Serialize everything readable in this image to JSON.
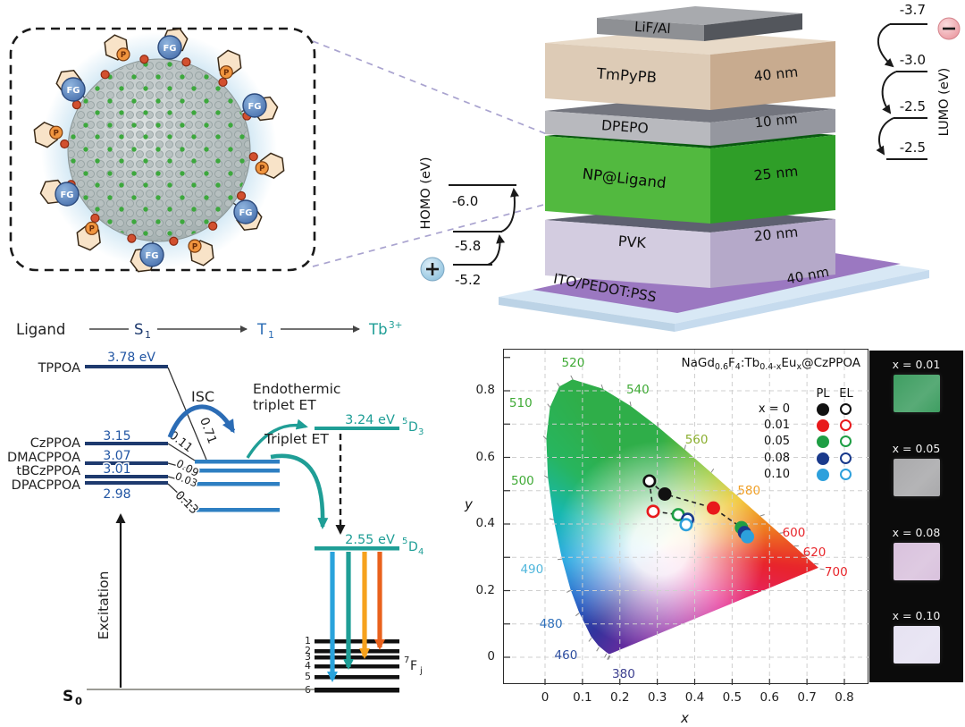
{
  "inset": {
    "fg_label": "FG",
    "p_label": "P"
  },
  "device": {
    "layers": [
      {
        "name": "LiF/Al",
        "thickness": ""
      },
      {
        "name": "TmPyPB",
        "thickness": "40 nm"
      },
      {
        "name": "DPEPO",
        "thickness": "10 nm"
      },
      {
        "name": "NP@Ligand",
        "thickness": "25 nm"
      },
      {
        "name": "PVK",
        "thickness": "20 nm"
      },
      {
        "name": "ITO/PEDOT:PSS",
        "thickness": "40 nm"
      }
    ],
    "homo": {
      "label": "HOMO (eV)",
      "values": [
        "-6.0",
        "-5.8",
        "-5.2"
      ]
    },
    "lumo": {
      "label": "LUMO (eV)",
      "values": [
        "-3.7",
        "-3.0",
        "-2.5",
        "-2.5"
      ]
    }
  },
  "energy": {
    "header": {
      "ligand": "Ligand",
      "s1_base": "S",
      "s1_sub": "1",
      "t1_base": "T",
      "t1_sub": "1",
      "tb_base": "Tb",
      "tb_sup": "3+"
    },
    "ligands": [
      {
        "name": "TPPOA",
        "value": "3.78 eV",
        "delta": "0.71"
      },
      {
        "name": "CzPPOA",
        "value": "3.15",
        "delta": "0.11"
      },
      {
        "name": "DMACPPOA",
        "value": "3.07",
        "delta": "0.09"
      },
      {
        "name": "tBCzPPOA",
        "value": "3.01",
        "delta": "0.03"
      },
      {
        "name": "DPACPPOA",
        "value": "2.98",
        "delta": "0.13"
      }
    ],
    "labels": {
      "isc": "ISC",
      "endo1": "Endothermic",
      "endo2": "triplet ET",
      "triplet": "Triplet ET",
      "excitation": "Excitation",
      "s0_base": "S",
      "s0_sub": "0"
    },
    "d3": {
      "energy": "3.24 eV",
      "sup": "5",
      "base": "D",
      "sub": "3"
    },
    "d4": {
      "energy": "2.55 eV",
      "sup": "5",
      "base": "D",
      "sub": "4"
    },
    "fj": {
      "sup": "7",
      "base": "F",
      "sub": "j"
    },
    "fj_levels": [
      "1",
      "2",
      "3",
      "4",
      "5",
      "6"
    ]
  },
  "chart_data": {
    "type": "scatter",
    "title_parts": [
      {
        "t": "NaGd"
      },
      {
        "t": "0.6",
        "sub": true
      },
      {
        "t": "F"
      },
      {
        "t": "4",
        "sub": true
      },
      {
        "t": ":Tb"
      },
      {
        "t": "0.4-x",
        "sub": true
      },
      {
        "t": "Eu"
      },
      {
        "t": "x",
        "sub": true
      },
      {
        "t": "@CzPPOA"
      }
    ],
    "xlabel": "x",
    "ylabel": "y",
    "xlim": [
      0,
      0.8
    ],
    "ylim": [
      0,
      0.9
    ],
    "x_ticks": [
      "0",
      "0.1",
      "0.2",
      "0.3",
      "0.4",
      "0.5",
      "0.6",
      "0.7",
      "0.8"
    ],
    "y_ticks": [
      "0",
      "0.2",
      "0.4",
      "0.6",
      "0.8"
    ],
    "grid": "dashed",
    "legend": {
      "header_pl": "PL",
      "header_el": "EL",
      "x_label": "x =",
      "rows": [
        {
          "value": "0",
          "color": "#111111"
        },
        {
          "value": "0.01",
          "color": "#e8191c"
        },
        {
          "value": "0.05",
          "color": "#1e9e44"
        },
        {
          "value": "0.08",
          "color": "#1a3a8c"
        },
        {
          "value": "0.10",
          "color": "#2da0dc"
        }
      ]
    },
    "locus_labels": [
      {
        "text": "380",
        "x": 0.21,
        "y": -0.052,
        "color": "#3c3f8f"
      },
      {
        "text": "460",
        "x": 0.056,
        "y": 0.005,
        "color": "#2d4ea0"
      },
      {
        "text": "480",
        "x": 0.016,
        "y": 0.098,
        "color": "#2e6fba"
      },
      {
        "text": "490",
        "x": -0.035,
        "y": 0.262,
        "color": "#4fb6dc"
      },
      {
        "text": "500",
        "x": -0.06,
        "y": 0.528,
        "color": "#3faa35"
      },
      {
        "text": "510",
        "x": -0.065,
        "y": 0.762,
        "color": "#3faa35"
      },
      {
        "text": "520",
        "x": 0.075,
        "y": 0.882,
        "color": "#3faa35"
      },
      {
        "text": "540",
        "x": 0.248,
        "y": 0.803,
        "color": "#3faa35"
      },
      {
        "text": "560",
        "x": 0.405,
        "y": 0.652,
        "color": "#8aae2e"
      },
      {
        "text": "580",
        "x": 0.545,
        "y": 0.498,
        "color": "#f0a028"
      },
      {
        "text": "600",
        "x": 0.665,
        "y": 0.374,
        "color": "#e8262b"
      },
      {
        "text": "620",
        "x": 0.72,
        "y": 0.314,
        "color": "#e8262b"
      },
      {
        "text": "700",
        "x": 0.778,
        "y": 0.254,
        "color": "#e8262b"
      }
    ],
    "series": [
      {
        "name": "PL",
        "marker": "filled",
        "points": [
          {
            "x": 0.32,
            "y": 0.49,
            "color": "#111111"
          },
          {
            "x": 0.45,
            "y": 0.448,
            "color": "#e8191c"
          },
          {
            "x": 0.525,
            "y": 0.389,
            "color": "#1e9e44"
          },
          {
            "x": 0.533,
            "y": 0.374,
            "color": "#1a3a8c"
          },
          {
            "x": 0.541,
            "y": 0.362,
            "color": "#2da0dc"
          }
        ]
      },
      {
        "name": "EL",
        "marker": "open",
        "points": [
          {
            "x": 0.279,
            "y": 0.529,
            "color": "#111111"
          },
          {
            "x": 0.289,
            "y": 0.438,
            "color": "#e8191c"
          },
          {
            "x": 0.356,
            "y": 0.428,
            "color": "#1e9e44"
          },
          {
            "x": 0.381,
            "y": 0.414,
            "color": "#1a3a8c"
          },
          {
            "x": 0.377,
            "y": 0.398,
            "color": "#2da0dc"
          }
        ]
      }
    ]
  },
  "photos": {
    "items": [
      {
        "label": "x = 0.01",
        "color": "#3f9e62"
      },
      {
        "label": "x = 0.05",
        "color": "#a9a9ab"
      },
      {
        "label": "x = 0.08",
        "color": "#d9c2dd"
      },
      {
        "label": "x = 0.10",
        "color": "#e6e2f2"
      }
    ]
  }
}
